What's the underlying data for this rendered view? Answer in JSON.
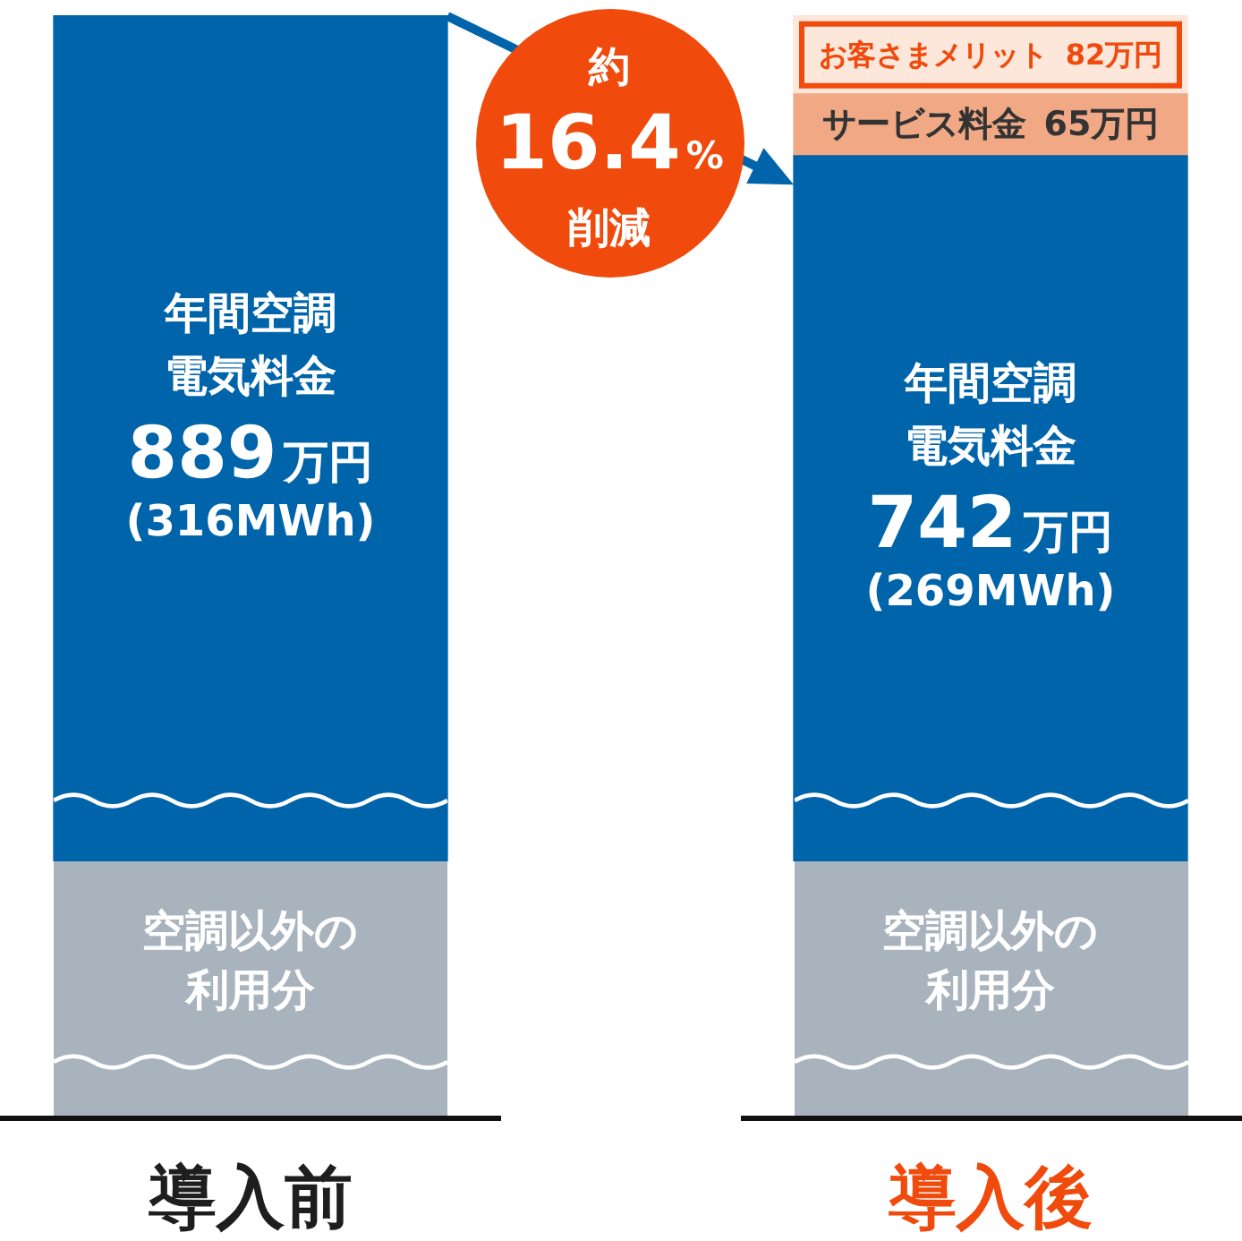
{
  "chart_data": {
    "type": "bar",
    "stacked": true,
    "categories": [
      "導入前",
      "導入後"
    ],
    "series": [
      {
        "name": "年間空調電気料金",
        "color": "#0064aa",
        "values": [
          889,
          742
        ],
        "value_labels": [
          "889万円 (316MWh)",
          "742万円 (269MWh)"
        ]
      },
      {
        "name": "サービス料金",
        "color": "#f1a985",
        "values": [
          null,
          65
        ],
        "value_labels": [
          null,
          "65万円"
        ]
      },
      {
        "name": "お客さまメリット",
        "color": "#fde6da",
        "values": [
          null,
          82
        ],
        "value_labels": [
          null,
          "82万円"
        ]
      }
    ],
    "legend": false,
    "annotations": [
      "約16.4%削減",
      "空調以外の利用分",
      "空調以外の利用分"
    ]
  }
}
